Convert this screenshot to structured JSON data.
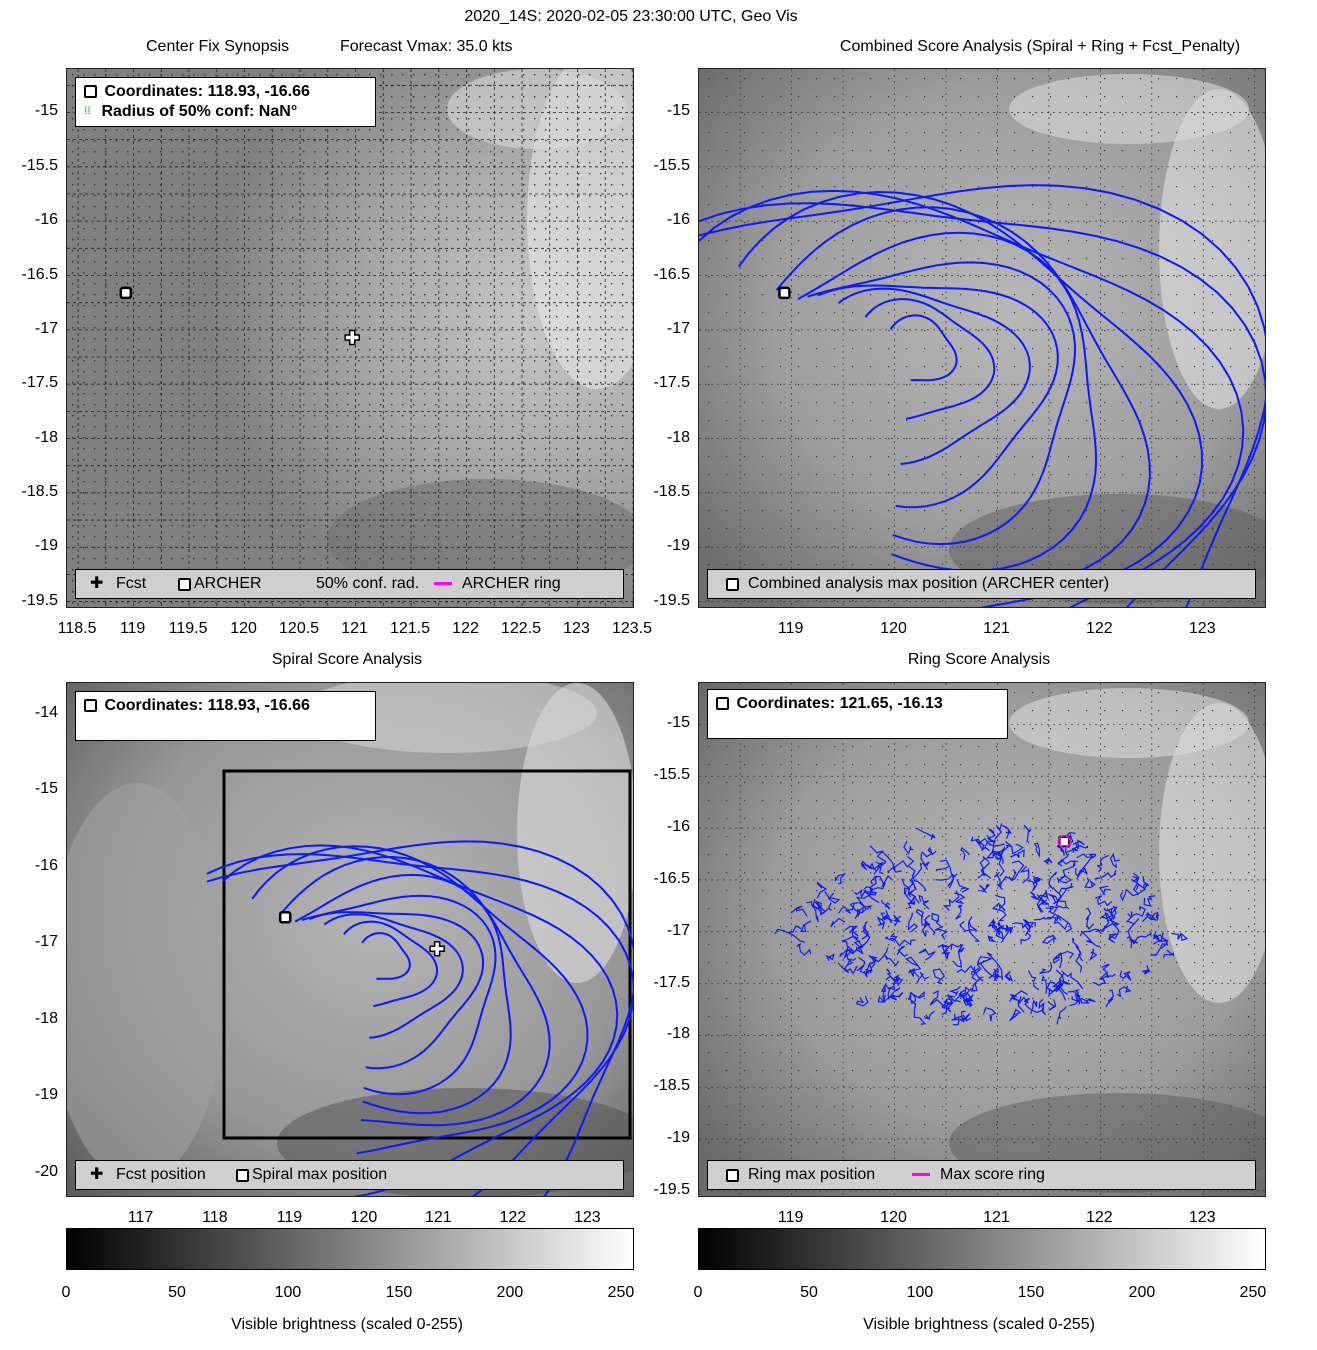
{
  "header": {
    "title": "2020_14S: 2020-02-05 23:30:00 UTC, Geo Vis"
  },
  "panels": {
    "synopsis": {
      "title_left": "Center Fix Synopsis",
      "title_right": "Forecast Vmax: 35.0 kts",
      "info_line1": "Coordinates: 118.93, -16.66",
      "info_line2": "Radius of 50% conf: NaN°",
      "legend": {
        "fcst": "Fcst",
        "archer": "ARCHER",
        "conf": "50% conf. rad.",
        "ring": "ARCHER ring"
      },
      "yticks": [
        "-15",
        "-15.5",
        "-16",
        "-16.5",
        "-17",
        "-17.5",
        "-18",
        "-18.5",
        "-19",
        "-19.5"
      ],
      "xticks": [
        "118.5",
        "119",
        "119.5",
        "120",
        "120.5",
        "121",
        "121.5",
        "122",
        "122.5",
        "123",
        "123.5"
      ]
    },
    "combined": {
      "title": "Combined Score Analysis (Spiral + Ring + Fcst_Penalty)",
      "legend": "Combined analysis max position (ARCHER center)",
      "yticks": [
        "-15",
        "-15.5",
        "-16",
        "-16.5",
        "-17",
        "-17.5",
        "-18",
        "-18.5",
        "-19",
        "-19.5"
      ],
      "xticks": [
        "119",
        "120",
        "121",
        "122",
        "123"
      ]
    },
    "spiral": {
      "title": "Spiral Score Analysis",
      "info_line1": "Coordinates: 118.93, -16.66",
      "legend": {
        "fcst": "Fcst position",
        "max": "Spiral max position"
      },
      "yticks": [
        "-14",
        "-15",
        "-16",
        "-17",
        "-18",
        "-19",
        "-20"
      ],
      "xticks": [
        "117",
        "118",
        "119",
        "120",
        "121",
        "122",
        "123"
      ]
    },
    "ring": {
      "title": "Ring Score Analysis",
      "info_line1": "Coordinates: 121.65, -16.13",
      "legend": {
        "max": "Ring max position",
        "ring": "Max score ring"
      },
      "yticks": [
        "-15",
        "-15.5",
        "-16",
        "-16.5",
        "-17",
        "-17.5",
        "-18",
        "-18.5",
        "-19",
        "-19.5"
      ],
      "xticks": [
        "119",
        "120",
        "121",
        "122",
        "123"
      ]
    }
  },
  "colorbars": {
    "ticks": [
      "0",
      "50",
      "100",
      "150",
      "200",
      "250"
    ],
    "label": "Visible brightness (scaled 0-255)"
  },
  "colors": {
    "contour": "#0a1aff",
    "ring": "#ff00ff",
    "conf": "#22cc22"
  },
  "chart_data": [
    {
      "type": "heatmap",
      "title": "Center Fix Synopsis",
      "xlim": [
        118.4,
        123.5
      ],
      "ylim": [
        -19.55,
        -14.6
      ],
      "points": [
        {
          "name": "Fcst",
          "x": 120.97,
          "y": -17.07
        },
        {
          "name": "ARCHER",
          "x": 118.93,
          "y": -16.66
        }
      ]
    },
    {
      "type": "heatmap",
      "title": "Combined Score Analysis (Spiral + Ring + Fcst_Penalty)",
      "xlim": [
        118.1,
        123.6
      ],
      "ylim": [
        -19.55,
        -14.6
      ],
      "points": [
        {
          "name": "Combined analysis max position (ARCHER center)",
          "x": 118.93,
          "y": -16.66
        }
      ]
    },
    {
      "type": "heatmap",
      "title": "Spiral Score Analysis",
      "xlim": [
        116.0,
        123.6
      ],
      "ylim": [
        -20.3,
        -13.6
      ],
      "points": [
        {
          "name": "Fcst position",
          "x": 120.97,
          "y": -17.07
        },
        {
          "name": "Spiral max position",
          "x": 118.93,
          "y": -16.66
        }
      ]
    },
    {
      "type": "heatmap",
      "title": "Ring Score Analysis",
      "xlim": [
        118.1,
        123.6
      ],
      "ylim": [
        -19.55,
        -14.6
      ],
      "points": [
        {
          "name": "Ring max position",
          "x": 121.65,
          "y": -16.13
        }
      ]
    },
    {
      "type": "heatmap",
      "title": "colorbar",
      "xlabel": "Visible brightness (scaled 0-255)",
      "xlim": [
        0,
        255
      ]
    }
  ]
}
